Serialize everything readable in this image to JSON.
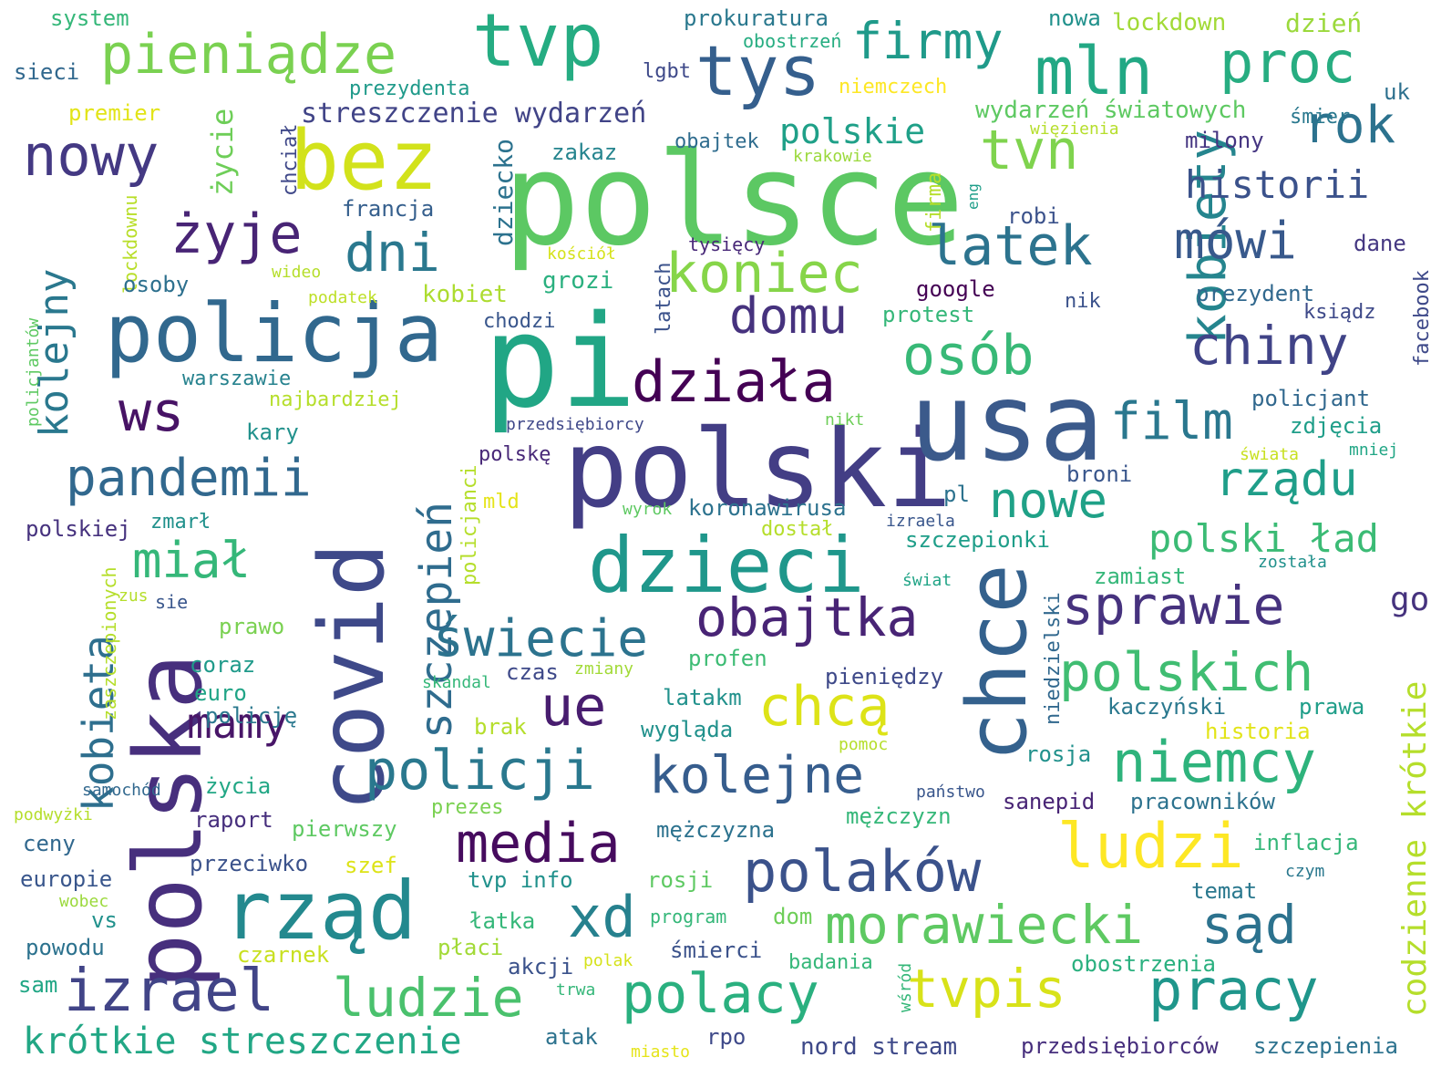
{
  "words": [
    {
      "text": "polsce",
      "color": "#5cc863"
    },
    {
      "text": "pi",
      "color": "#21a685"
    },
    {
      "text": "polski",
      "color": "#433e85"
    },
    {
      "text": "usa",
      "color": "#3b5a8b"
    },
    {
      "text": "polska",
      "color": "#472f7d"
    },
    {
      "text": "covid",
      "color": "#3e4989"
    },
    {
      "text": "chce",
      "color": "#34618d"
    },
    {
      "text": "rząd",
      "color": "#23898e"
    },
    {
      "text": "policja",
      "color": "#31688e"
    },
    {
      "text": "bez",
      "color": "#d2e21b"
    },
    {
      "text": "dzieci",
      "color": "#1f978b"
    },
    {
      "text": "tvp",
      "color": "#25ac82"
    },
    {
      "text": "tys",
      "color": "#355f8d"
    },
    {
      "text": "mln",
      "color": "#22a884"
    },
    {
      "text": "proc",
      "color": "#27ad81"
    },
    {
      "text": "pieniądze",
      "color": "#7ad151"
    },
    {
      "text": "firmy",
      "color": "#1f9a8a"
    },
    {
      "text": "nowy",
      "color": "#443983"
    },
    {
      "text": "tvn",
      "color": "#7fd34e"
    },
    {
      "text": "rok",
      "color": "#2c728e"
    },
    {
      "text": "kobiety",
      "color": "#25858e"
    },
    {
      "text": "historii",
      "color": "#3b528b"
    },
    {
      "text": "żyje",
      "color": "#482475"
    },
    {
      "text": "dni",
      "color": "#2a788e"
    },
    {
      "text": "latek",
      "color": "#2c738e"
    },
    {
      "text": "mówi",
      "color": "#38598c"
    },
    {
      "text": "koniec",
      "color": "#86d549"
    },
    {
      "text": "kolejny",
      "color": "#2a788e"
    },
    {
      "text": "domu",
      "color": "#46327e"
    },
    {
      "text": "osób",
      "color": "#38b977"
    },
    {
      "text": "chiny",
      "color": "#404387"
    },
    {
      "text": "działa",
      "color": "#440154"
    },
    {
      "text": "ws",
      "color": "#471365"
    },
    {
      "text": "film",
      "color": "#2a778e"
    },
    {
      "text": "pandemii",
      "color": "#31688e"
    },
    {
      "text": "szczepień",
      "color": "#2f6c8e"
    },
    {
      "text": "nowe",
      "color": "#1fa187"
    },
    {
      "text": "rządu",
      "color": "#1f9e89"
    },
    {
      "text": "go",
      "color": "#46337e"
    },
    {
      "text": "miał",
      "color": "#35b779"
    },
    {
      "text": "kobieta",
      "color": "#2e6f8e"
    },
    {
      "text": "polski ład",
      "color": "#3bbb75"
    },
    {
      "text": "sprawie",
      "color": "#46327e"
    },
    {
      "text": "obajtka",
      "color": "#482475"
    },
    {
      "text": "świecie",
      "color": "#2c738e"
    },
    {
      "text": "polskich",
      "color": "#40bd72"
    },
    {
      "text": "codzienne krótkie",
      "color": "#b5de2b"
    },
    {
      "text": "chcą",
      "color": "#dde318"
    },
    {
      "text": "ue",
      "color": "#481d6f"
    },
    {
      "text": "niemcy",
      "color": "#2eb37c"
    },
    {
      "text": "mamy",
      "color": "#481668"
    },
    {
      "text": "policji",
      "color": "#2a788e"
    },
    {
      "text": "kolejne",
      "color": "#365d8d"
    },
    {
      "text": "ludzi",
      "color": "#fde725"
    },
    {
      "text": "media",
      "color": "#460b5e"
    },
    {
      "text": "polaków",
      "color": "#3b528b"
    },
    {
      "text": "morawiecki",
      "color": "#5ec962"
    },
    {
      "text": "sąd",
      "color": "#2c728e"
    },
    {
      "text": "xd",
      "color": "#26818e"
    },
    {
      "text": "izrael",
      "color": "#414487"
    },
    {
      "text": "ludzie",
      "color": "#4ac16d"
    },
    {
      "text": "polacy",
      "color": "#2ab07f"
    },
    {
      "text": "tvpis",
      "color": "#d8e219"
    },
    {
      "text": "pracy",
      "color": "#1f968b"
    },
    {
      "text": "krótkie streszczenie",
      "color": "#22a785"
    },
    {
      "text": "streszczenie wydarzeń",
      "color": "#414487"
    },
    {
      "text": "polskie",
      "color": "#1fa088"
    },
    {
      "text": "życie",
      "color": "#6ece58"
    },
    {
      "text": "prokuratura",
      "color": "#2a788e"
    },
    {
      "text": "lockdown",
      "color": "#a2da37"
    },
    {
      "text": "dzień",
      "color": "#9bd93c"
    },
    {
      "text": "nowa",
      "color": "#21918c"
    },
    {
      "text": "system",
      "color": "#35b779"
    },
    {
      "text": "sieci",
      "color": "#31688e"
    },
    {
      "text": "obostrzeń",
      "color": "#26ad81"
    },
    {
      "text": "lgbt",
      "color": "#3e4989"
    },
    {
      "text": "prezydenta",
      "color": "#1f9a8a"
    },
    {
      "text": "niemczech",
      "color": "#fde725"
    },
    {
      "text": "premier",
      "color": "#e2e418"
    },
    {
      "text": "uk",
      "color": "#2d708e"
    },
    {
      "text": "wydarzeń światowych",
      "color": "#5ec962"
    },
    {
      "text": "śmier",
      "color": "#2a788e"
    },
    {
      "text": "więzienia",
      "color": "#b5de2b"
    },
    {
      "text": "obajtek",
      "color": "#2f6c8e"
    },
    {
      "text": "milony",
      "color": "#453581"
    },
    {
      "text": "chciał",
      "color": "#3f4889"
    },
    {
      "text": "dziecko",
      "color": "#2c728e"
    },
    {
      "text": "zakaz",
      "color": "#25848e"
    },
    {
      "text": "krakowie",
      "color": "#9bd93c"
    },
    {
      "text": "firma",
      "color": "#b5de2b"
    },
    {
      "text": "eng",
      "color": "#1f9e89"
    },
    {
      "text": "francja",
      "color": "#355f8d"
    },
    {
      "text": "robi",
      "color": "#3b528b"
    },
    {
      "text": "lockdownu",
      "color": "#b8de29"
    },
    {
      "text": "tysięcy",
      "color": "#482878"
    },
    {
      "text": "latach",
      "color": "#3b528b"
    },
    {
      "text": "kościół",
      "color": "#d5e21a"
    },
    {
      "text": "dane",
      "color": "#453882"
    },
    {
      "text": "wideo",
      "color": "#b5de2b"
    },
    {
      "text": "grozi",
      "color": "#2ab07f"
    },
    {
      "text": "google",
      "color": "#440154"
    },
    {
      "text": "facebook",
      "color": "#3e4989"
    },
    {
      "text": "osoby",
      "color": "#2d708e"
    },
    {
      "text": "podatek",
      "color": "#bddf26"
    },
    {
      "text": "kobiet",
      "color": "#addc30"
    },
    {
      "text": "prezydent",
      "color": "#31688e"
    },
    {
      "text": "nik",
      "color": "#3b528b"
    },
    {
      "text": "ksiądz",
      "color": "#3e4989"
    },
    {
      "text": "protest",
      "color": "#35b779"
    },
    {
      "text": "policjantów",
      "color": "#5ec962"
    },
    {
      "text": "chodzi",
      "color": "#39568c"
    },
    {
      "text": "warszawie",
      "color": "#26828e"
    },
    {
      "text": "policjant",
      "color": "#31688e"
    },
    {
      "text": "najbardziej",
      "color": "#b5de2b"
    },
    {
      "text": "kary",
      "color": "#21918c"
    },
    {
      "text": "przedsiębiorcy",
      "color": "#3f4889"
    },
    {
      "text": "nikt",
      "color": "#6ece58"
    },
    {
      "text": "zdjęcia",
      "color": "#1f9e89"
    },
    {
      "text": "polskę",
      "color": "#482878"
    },
    {
      "text": "policjanci",
      "color": "#b5de2b"
    },
    {
      "text": "świata",
      "color": "#c8e020"
    },
    {
      "text": "mniej",
      "color": "#21a685"
    },
    {
      "text": "broni",
      "color": "#39568c"
    },
    {
      "text": "mld",
      "color": "#e5e419"
    },
    {
      "text": "wyrok",
      "color": "#5ec962"
    },
    {
      "text": "koronawirusa",
      "color": "#2c728e"
    },
    {
      "text": "pl",
      "color": "#2c728e"
    },
    {
      "text": "polskiej",
      "color": "#46327e"
    },
    {
      "text": "zmarł",
      "color": "#21918c"
    },
    {
      "text": "dostał",
      "color": "#b5de2b"
    },
    {
      "text": "izraela",
      "color": "#39568c"
    },
    {
      "text": "szczepionki",
      "color": "#1f9e89"
    },
    {
      "text": "została",
      "color": "#21918c"
    },
    {
      "text": "zaszczepionych",
      "color": "#b5de2b"
    },
    {
      "text": "zamiast",
      "color": "#35b779"
    },
    {
      "text": "świat",
      "color": "#20a486"
    },
    {
      "text": "niedzielski",
      "color": "#31688e"
    },
    {
      "text": "zus",
      "color": "#b5de2b"
    },
    {
      "text": "sie",
      "color": "#39568c"
    },
    {
      "text": "prawo",
      "color": "#7ad151"
    },
    {
      "text": "profen",
      "color": "#3dbc74"
    },
    {
      "text": "coraz",
      "color": "#1f9a8a"
    },
    {
      "text": "skandal",
      "color": "#35b779"
    },
    {
      "text": "czas",
      "color": "#3e4989"
    },
    {
      "text": "zmiany",
      "color": "#a2da37"
    },
    {
      "text": "pieniędzy",
      "color": "#3e4989"
    },
    {
      "text": "euro",
      "color": "#20a486"
    },
    {
      "text": "latakm",
      "color": "#21918c"
    },
    {
      "text": "kaczyński",
      "color": "#2a788e"
    },
    {
      "text": "prawa",
      "color": "#1f9e89"
    },
    {
      "text": "policję",
      "color": "#2a788e"
    },
    {
      "text": "historia",
      "color": "#e2e418"
    },
    {
      "text": "brak",
      "color": "#b5de2b"
    },
    {
      "text": "wygląda",
      "color": "#21918c"
    },
    {
      "text": "pomoc",
      "color": "#b5de2b"
    },
    {
      "text": "rosja",
      "color": "#21918c"
    },
    {
      "text": "życia",
      "color": "#22a785"
    },
    {
      "text": "samochód",
      "color": "#31688e"
    },
    {
      "text": "państwo",
      "color": "#39568c"
    },
    {
      "text": "prezes",
      "color": "#7ad151"
    },
    {
      "text": "sanepid",
      "color": "#482475"
    },
    {
      "text": "pracowników",
      "color": "#2c728e"
    },
    {
      "text": "podwyżki",
      "color": "#b5de2b"
    },
    {
      "text": "raport",
      "color": "#472f7d"
    },
    {
      "text": "pierwszy",
      "color": "#5ec962"
    },
    {
      "text": "mężczyzna",
      "color": "#2c728e"
    },
    {
      "text": "mężczyzn",
      "color": "#35b779"
    },
    {
      "text": "ceny",
      "color": "#31688e"
    },
    {
      "text": "inflacja",
      "color": "#35b779"
    },
    {
      "text": "przeciwko",
      "color": "#3b528b"
    },
    {
      "text": "szef",
      "color": "#dde318"
    },
    {
      "text": "europie",
      "color": "#39568c"
    },
    {
      "text": "tvp info",
      "color": "#21918c"
    },
    {
      "text": "rosji",
      "color": "#5ec962"
    },
    {
      "text": "temat",
      "color": "#2a788e"
    },
    {
      "text": "czym",
      "color": "#2a788e"
    },
    {
      "text": "wobec",
      "color": "#9bd93c"
    },
    {
      "text": "vs",
      "color": "#21918c"
    },
    {
      "text": "program",
      "color": "#35b779"
    },
    {
      "text": "dom",
      "color": "#6ece58"
    },
    {
      "text": "łatka",
      "color": "#35b779"
    },
    {
      "text": "powodu",
      "color": "#2c728e"
    },
    {
      "text": "płaci",
      "color": "#a2da37"
    },
    {
      "text": "czarnek",
      "color": "#c8e020"
    },
    {
      "text": "śmierci",
      "color": "#3b528b"
    },
    {
      "text": "badania",
      "color": "#35b779"
    },
    {
      "text": "obostrzenia",
      "color": "#2ab07f"
    },
    {
      "text": "akcji",
      "color": "#3b528b"
    },
    {
      "text": "polak",
      "color": "#d5e21a"
    },
    {
      "text": "sam",
      "color": "#21a685"
    },
    {
      "text": "trwa",
      "color": "#35b779"
    },
    {
      "text": "wśród",
      "color": "#35b779"
    },
    {
      "text": "atak",
      "color": "#2c728e"
    },
    {
      "text": "rpo",
      "color": "#3e4989"
    },
    {
      "text": "miasto",
      "color": "#e5e419"
    },
    {
      "text": "nord stream",
      "color": "#3e4989"
    },
    {
      "text": "przedsiębiorców",
      "color": "#472f7d"
    },
    {
      "text": "szczepienia",
      "color": "#2c728e"
    }
  ]
}
